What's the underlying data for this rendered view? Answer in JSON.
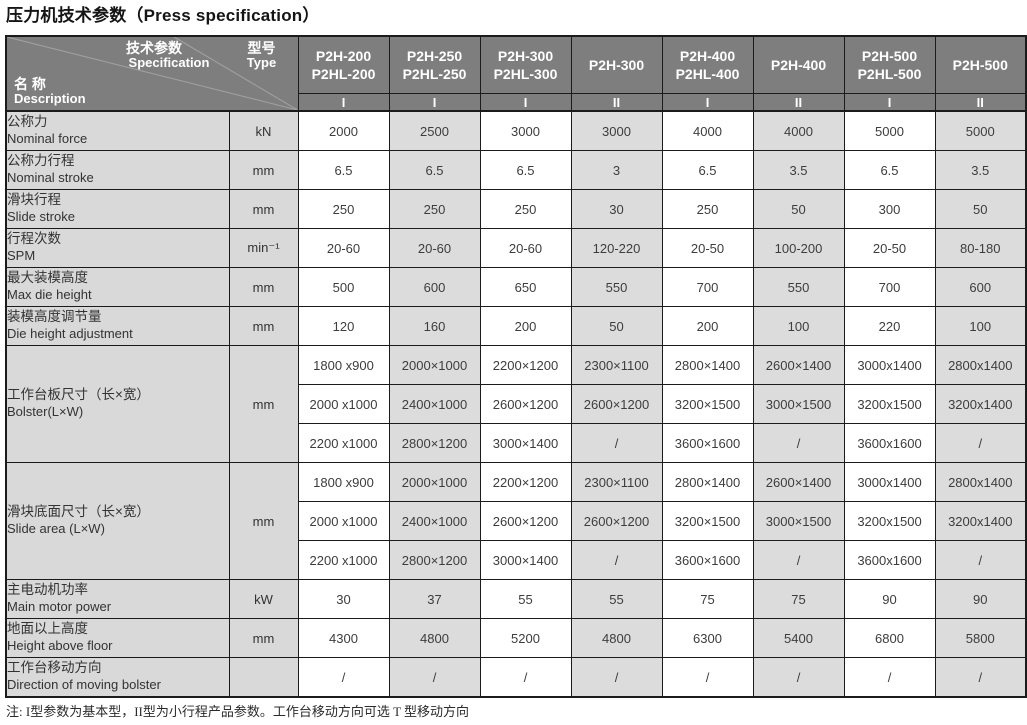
{
  "page_title": "压力机技术参数（Press specification）",
  "table": {
    "corner": {
      "spec_zh": "技术参数",
      "spec_en": "Specification",
      "type_zh": "型号",
      "type_en": "Type",
      "name_zh": "名 称",
      "name_en": "Description"
    },
    "columns": [
      {
        "models": [
          "P2H-200",
          "P2HL-200"
        ],
        "variant": "I"
      },
      {
        "models": [
          "P2H-250",
          "P2HL-250"
        ],
        "variant": "I"
      },
      {
        "models": [
          "P2H-300",
          "P2HL-300"
        ],
        "variant": "I"
      },
      {
        "models": [
          "P2H-300"
        ],
        "variant": "II"
      },
      {
        "models": [
          "P2H-400",
          "P2HL-400"
        ],
        "variant": "I"
      },
      {
        "models": [
          "P2H-400"
        ],
        "variant": "II"
      },
      {
        "models": [
          "P2H-500",
          "P2HL-500"
        ],
        "variant": "I"
      },
      {
        "models": [
          "P2H-500"
        ],
        "variant": "II"
      }
    ],
    "rows": [
      {
        "label_zh": "公称力",
        "label_en": "Nominal force",
        "unit": "kN",
        "values": [
          "2000",
          "2500",
          "3000",
          "3000",
          "4000",
          "4000",
          "5000",
          "5000"
        ]
      },
      {
        "label_zh": "公称力行程",
        "label_en": "Nominal stroke",
        "unit": "mm",
        "values": [
          "6.5",
          "6.5",
          "6.5",
          "3",
          "6.5",
          "3.5",
          "6.5",
          "3.5"
        ]
      },
      {
        "label_zh": "滑块行程",
        "label_en": "Slide stroke",
        "unit": "mm",
        "values": [
          "250",
          "250",
          "250",
          "30",
          "250",
          "50",
          "300",
          "50"
        ]
      },
      {
        "label_zh": "行程次数",
        "label_en": "SPM",
        "unit": "min⁻¹",
        "values": [
          "20-60",
          "20-60",
          "20-60",
          "120-220",
          "20-50",
          "100-200",
          "20-50",
          "80-180"
        ]
      },
      {
        "label_zh": "最大装模高度",
        "label_en": "Max die height",
        "unit": "mm",
        "values": [
          "500",
          "600",
          "650",
          "550",
          "700",
          "550",
          "700",
          "600"
        ]
      },
      {
        "label_zh": "装模高度调节量",
        "label_en": "Die height adjustment",
        "unit": "mm",
        "values": [
          "120",
          "160",
          "200",
          "50",
          "200",
          "100",
          "220",
          "100"
        ]
      },
      {
        "label_zh": "工作台板尺寸（长×宽）",
        "label_en": "Bolster(L×W)",
        "unit": "mm",
        "subrows": [
          [
            "1800 x900",
            "2000×1000",
            "2200×1200",
            "2300×1100",
            "2800×1400",
            "2600×1400",
            "3000x1400",
            "2800x1400"
          ],
          [
            "2000 x1000",
            "2400×1000",
            "2600×1200",
            "2600×1200",
            "3200×1500",
            "3000×1500",
            "3200x1500",
            "3200x1400"
          ],
          [
            "2200 x1000",
            "2800×1200",
            "3000×1400",
            "/",
            "3600×1600",
            "/",
            "3600x1600",
            "/"
          ]
        ]
      },
      {
        "label_zh": "滑块底面尺寸（长×宽）",
        "label_en": "Slide area (L×W)",
        "unit": "mm",
        "subrows": [
          [
            "1800 x900",
            "2000×1000",
            "2200×1200",
            "2300×1100",
            "2800×1400",
            "2600×1400",
            "3000x1400",
            "2800x1400"
          ],
          [
            "2000 x1000",
            "2400×1000",
            "2600×1200",
            "2600×1200",
            "3200×1500",
            "3000×1500",
            "3200x1500",
            "3200x1400"
          ],
          [
            "2200 x1000",
            "2800×1200",
            "3000×1400",
            "/",
            "3600×1600",
            "/",
            "3600x1600",
            "/"
          ]
        ]
      },
      {
        "label_zh": "主电动机功率",
        "label_en": "Main motor power",
        "unit": "kW",
        "values": [
          "30",
          "37",
          "55",
          "55",
          "75",
          "75",
          "90",
          "90"
        ]
      },
      {
        "label_zh": "地面以上高度",
        "label_en": "Height above floor",
        "unit": "mm",
        "values": [
          "4300",
          "4800",
          "5200",
          "4800",
          "6300",
          "5400",
          "6800",
          "5800"
        ]
      },
      {
        "label_zh": "工作台移动方向",
        "label_en": "Direction of moving bolster",
        "unit": "",
        "values": [
          "/",
          "/",
          "/",
          "/",
          "/",
          "/",
          "/",
          "/"
        ]
      }
    ]
  },
  "footnote": "注: I型参数为基本型，II型为小行程产品参数。工作台移动方向可选 T 型移动方向",
  "colors": {
    "header_bg": "#7e7e7e",
    "header_text": "#ffffff",
    "label_col_bg": "#d9d9d9",
    "zebra_col_bg": "#dcdcdc",
    "grid_border": "#1b1b1b",
    "body_text": "#3d3d3d"
  }
}
